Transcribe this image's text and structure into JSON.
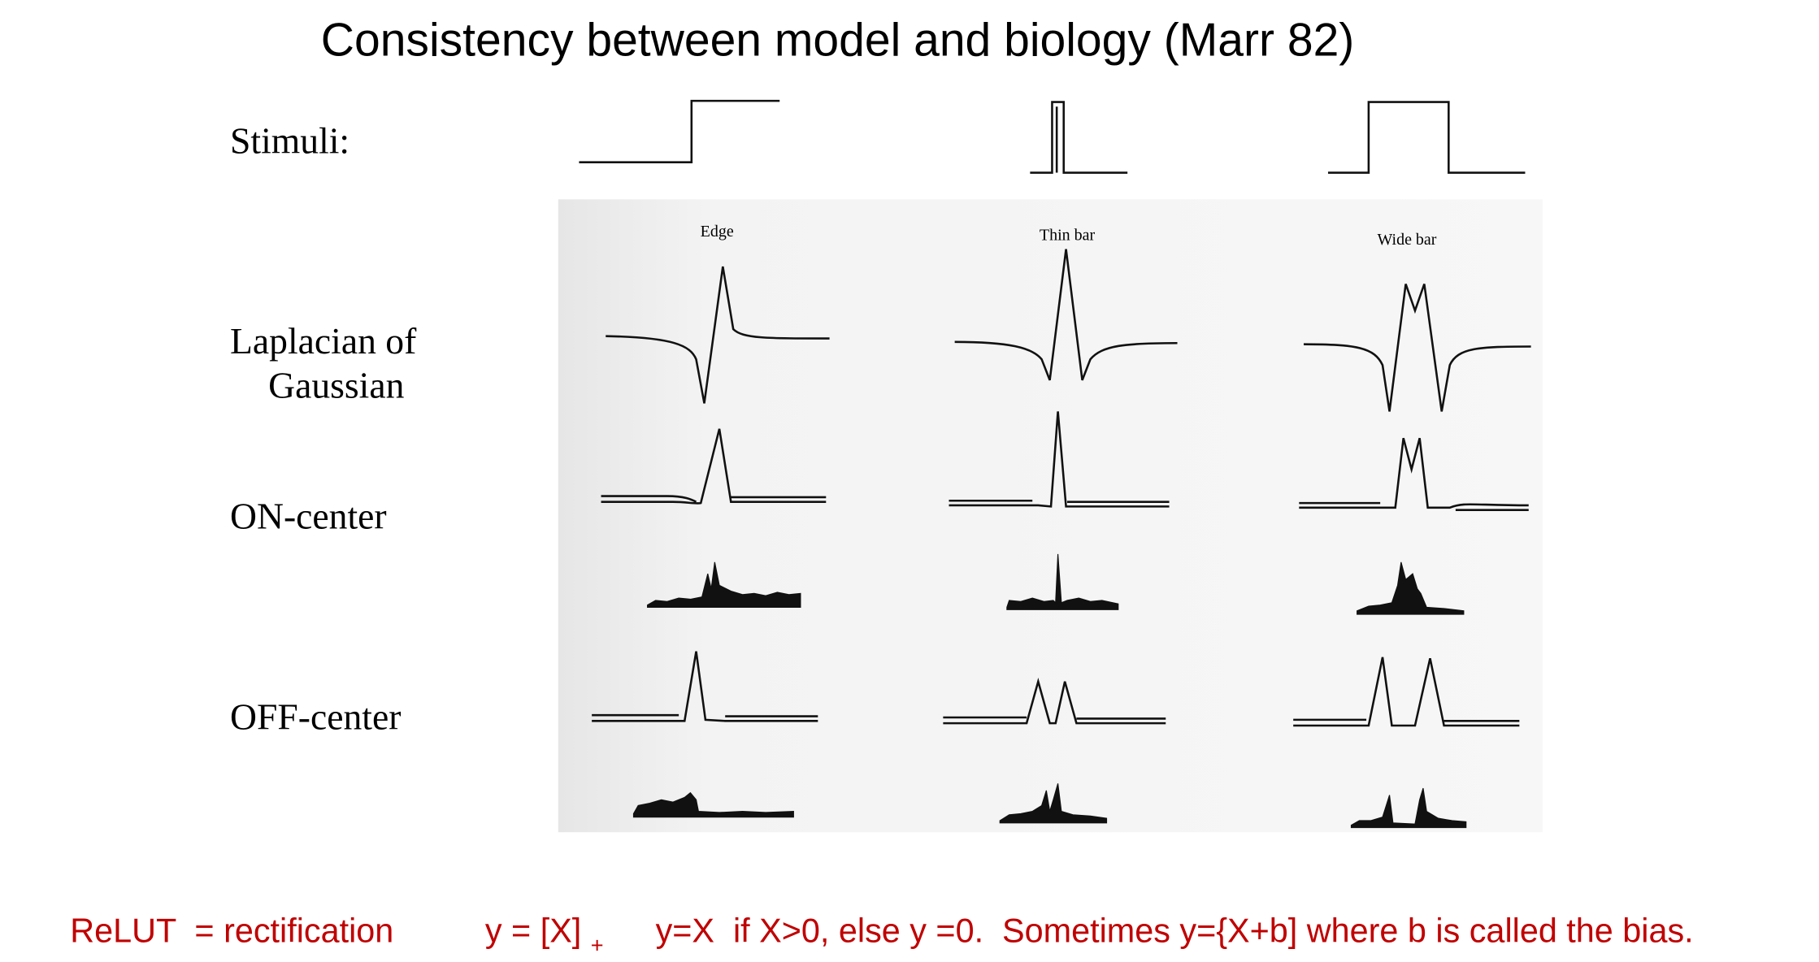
{
  "header": {
    "title": "Consistency between model and biology (Marr 82)"
  },
  "figure": {
    "stimuli_label": "Stimuli:",
    "columns": [
      "Edge",
      "Thin bar",
      "Wide bar"
    ],
    "rows": [
      "Laplacian of",
      "Gaussian",
      "ON-center",
      "OFF-center"
    ]
  },
  "footer": {
    "definition": "ReLUT  = rectification",
    "formula": "y = [X]",
    "subscript": "+",
    "description": "y=X  if X>0, else y =0.  Sometimes y={X+b] where b is called the bias."
  }
}
